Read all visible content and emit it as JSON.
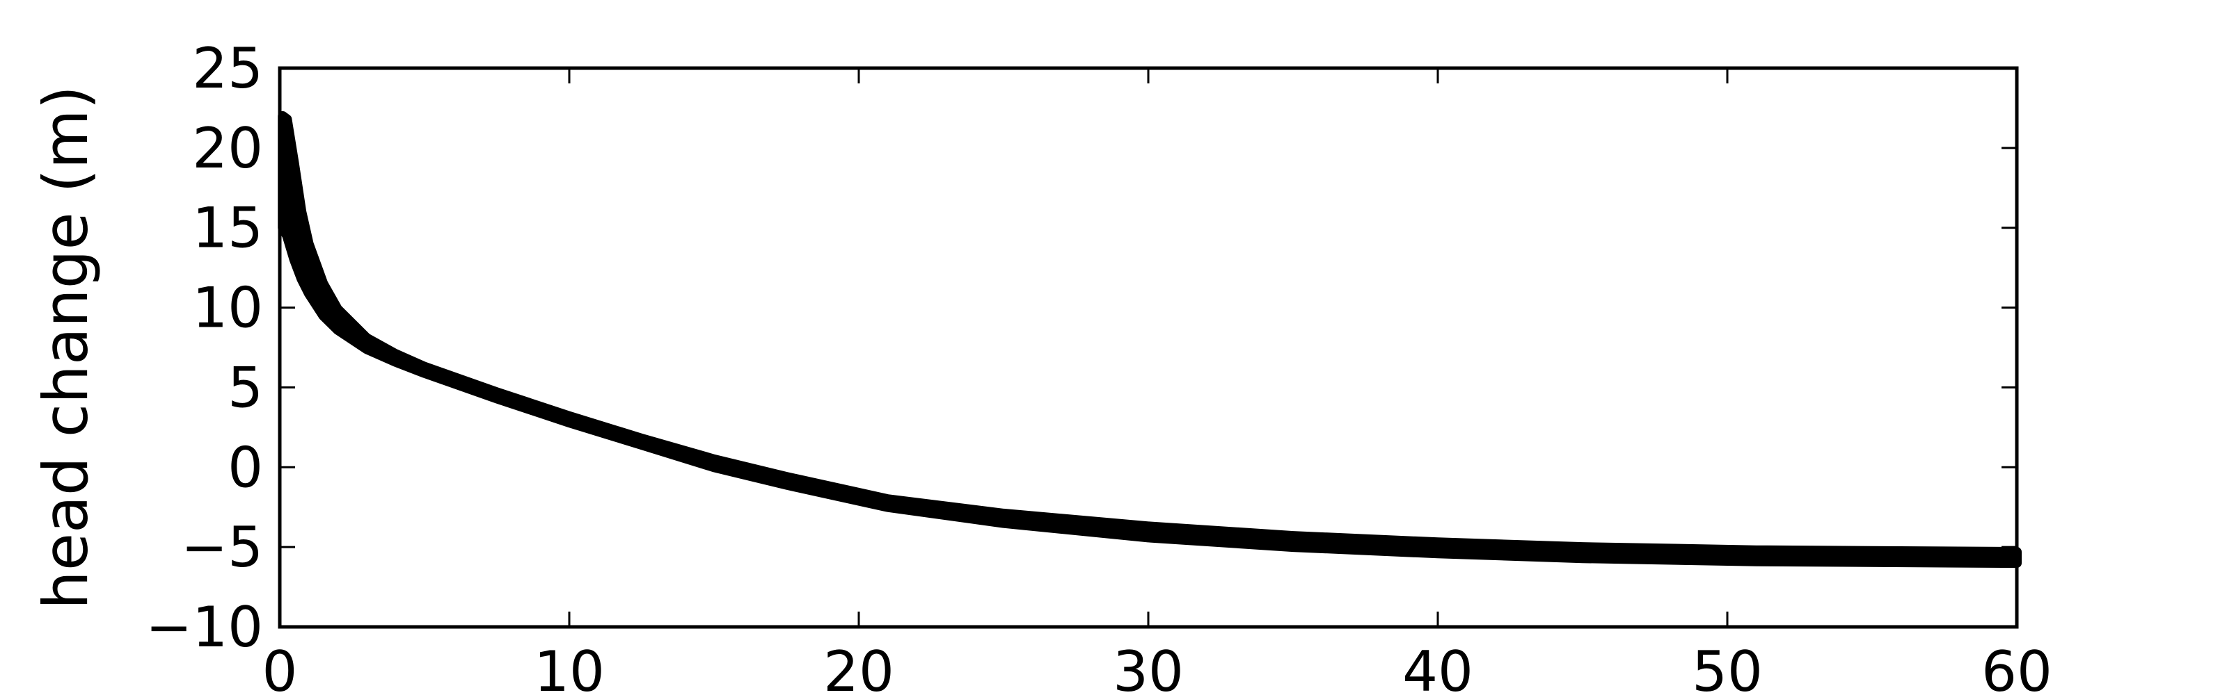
{
  "chart_data": {
    "type": "area",
    "title": "",
    "xlabel": "",
    "ylabel": "head change (m)",
    "xlim": [
      0,
      60
    ],
    "ylim": [
      -10,
      25
    ],
    "xticks": [
      0,
      10,
      20,
      30,
      40,
      50,
      60
    ],
    "yticks": [
      -10,
      -5,
      0,
      5,
      10,
      15,
      20,
      25
    ],
    "xtick_labels": [
      "0",
      "10",
      "20",
      "30",
      "40",
      "50",
      "60"
    ],
    "ytick_labels": [
      "−10",
      "−5",
      "0",
      "5",
      "10",
      "15",
      "20",
      "25"
    ],
    "grid": false,
    "legend": "none",
    "series": [
      {
        "color": "#000000",
        "x": [
          0.1,
          0.25,
          0.5,
          0.75,
          1.0,
          1.5,
          2,
          3,
          4,
          5,
          7.5,
          10,
          12.5,
          15,
          17.5,
          20,
          21,
          25,
          30,
          35,
          40,
          45,
          51,
          60
        ],
        "upper": [
          22.0,
          21.8,
          19.0,
          16.0,
          14.0,
          11.5,
          9.9,
          8.1,
          7.1,
          6.3,
          4.7,
          3.2,
          1.8,
          0.5,
          -0.6,
          -1.6,
          -2.0,
          -2.9,
          -3.7,
          -4.3,
          -4.7,
          -5.0,
          -5.2,
          -5.3
        ],
        "lower": [
          15.0,
          14.5,
          13.0,
          11.8,
          10.9,
          9.5,
          8.6,
          7.4,
          6.6,
          5.9,
          4.3,
          2.8,
          1.4,
          0.0,
          -1.1,
          -2.1,
          -2.5,
          -3.5,
          -4.4,
          -5.0,
          -5.4,
          -5.7,
          -5.9,
          -6.0
        ]
      }
    ]
  }
}
